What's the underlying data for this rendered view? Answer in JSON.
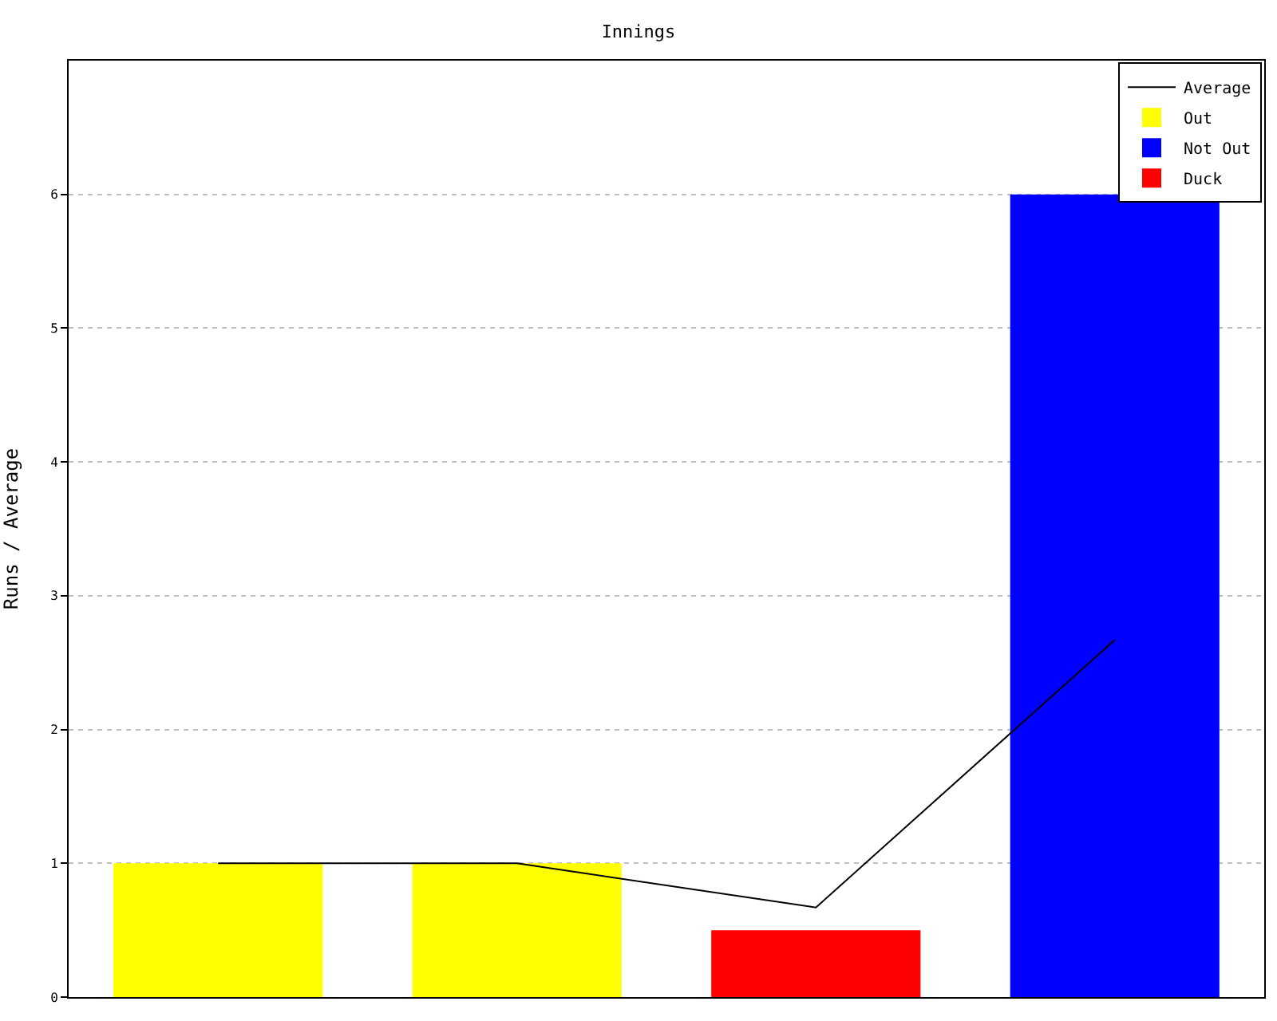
{
  "chart_data": {
    "type": "bar",
    "title": "Innings",
    "ylabel": "Runs / Average",
    "categories": [
      null,
      null,
      null,
      null
    ],
    "stacked": true,
    "series": [
      {
        "name": "Average",
        "type": "line",
        "color": "#000000",
        "values": [
          1,
          1,
          0.67,
          2.67
        ]
      },
      {
        "name": "Out",
        "color": "#ffff00",
        "values": [
          1,
          1,
          null,
          null
        ]
      },
      {
        "name": "Not Out",
        "color": "#0000ff",
        "values": [
          null,
          null,
          null,
          6
        ]
      },
      {
        "name": "Duck",
        "color": "#ff0000",
        "values": [
          null,
          null,
          0.5,
          null
        ]
      }
    ],
    "ylim": [
      0,
      7
    ],
    "yticks": [
      0,
      1,
      2,
      3,
      4,
      5,
      6
    ],
    "grid": "y",
    "legend": "top right",
    "marker": "none",
    "tick_labels": "y"
  }
}
